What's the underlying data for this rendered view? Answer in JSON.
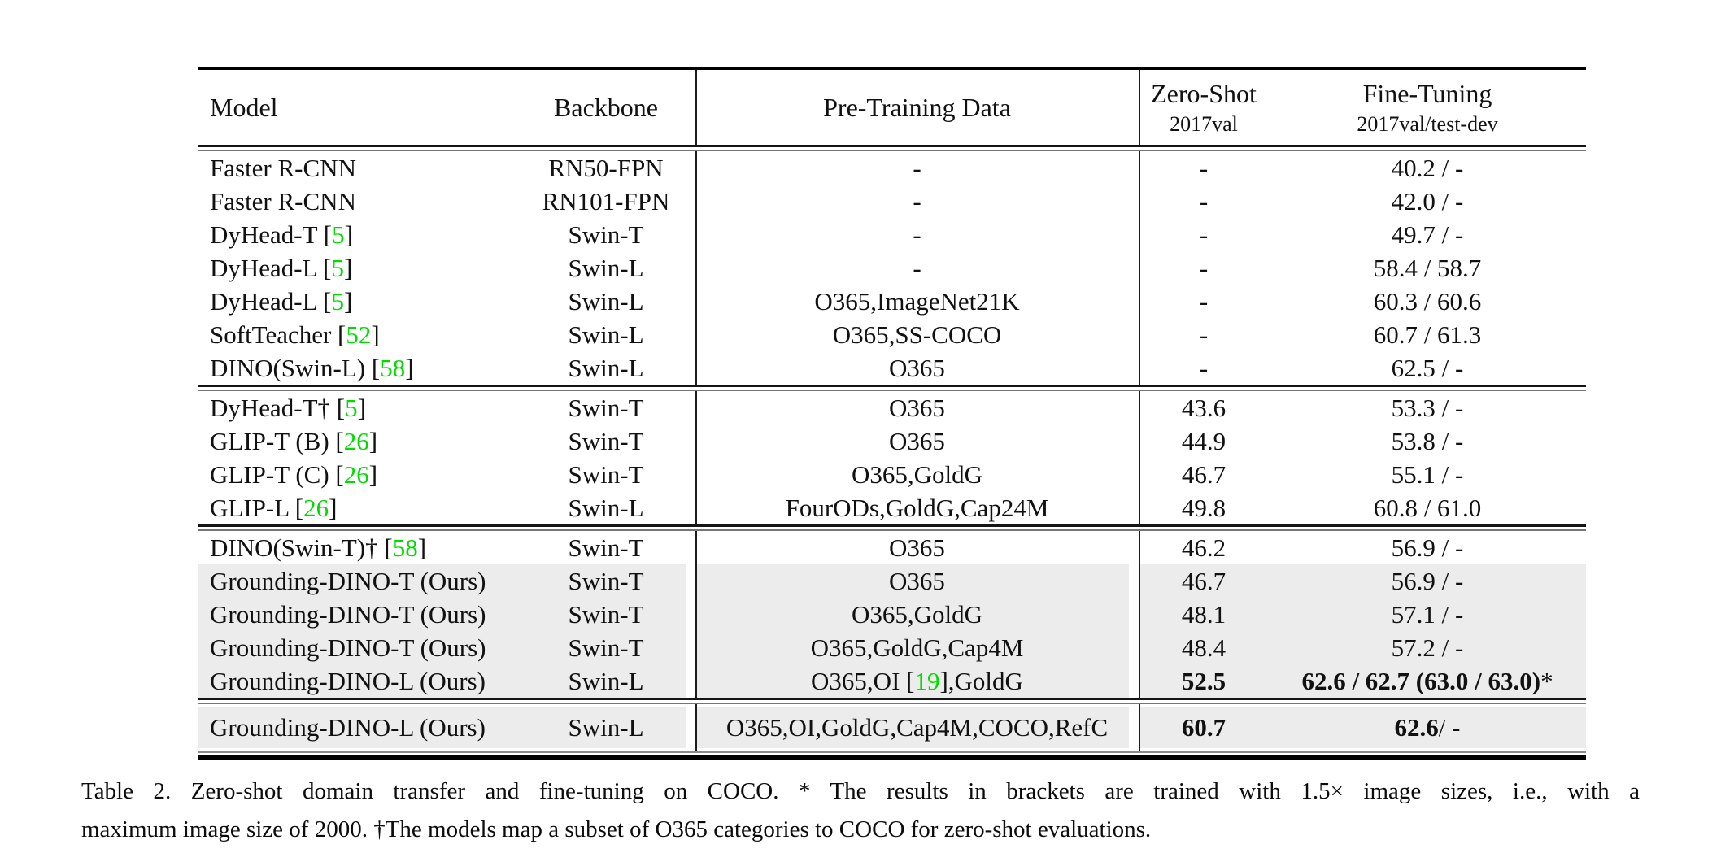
{
  "colors": {
    "citation_green": "#00DC00",
    "row_highlight": "#ECECEC",
    "rule_black": "#000000"
  },
  "header": {
    "model": "Model",
    "backbone": "Backbone",
    "pretrain": "Pre-Training Data",
    "zero_shot": "Zero-Shot",
    "zero_shot_sub": "2017val",
    "fine_tuning": "Fine-Tuning",
    "fine_tuning_sub": "2017val/test-dev"
  },
  "sections": [
    {
      "rows": [
        {
          "gray": false,
          "model": [
            {
              "t": "Faster R-CNN"
            }
          ],
          "backbone": "RN50-FPN",
          "pretrain": [
            {
              "t": "-"
            }
          ],
          "zs": [
            {
              "t": "-"
            }
          ],
          "ft": [
            {
              "t": "40.2 / -"
            }
          ]
        },
        {
          "gray": false,
          "model": [
            {
              "t": "Faster R-CNN"
            }
          ],
          "backbone": "RN101-FPN",
          "pretrain": [
            {
              "t": "-"
            }
          ],
          "zs": [
            {
              "t": "-"
            }
          ],
          "ft": [
            {
              "t": "42.0 / -"
            }
          ]
        },
        {
          "gray": false,
          "model": [
            {
              "t": "DyHead-T ["
            },
            {
              "t": "5",
              "green": true
            },
            {
              "t": "]"
            }
          ],
          "backbone": "Swin-T",
          "pretrain": [
            {
              "t": "-"
            }
          ],
          "zs": [
            {
              "t": "-"
            }
          ],
          "ft": [
            {
              "t": "49.7 / -"
            }
          ]
        },
        {
          "gray": false,
          "model": [
            {
              "t": "DyHead-L ["
            },
            {
              "t": "5",
              "green": true
            },
            {
              "t": "]"
            }
          ],
          "backbone": "Swin-L",
          "pretrain": [
            {
              "t": "-"
            }
          ],
          "zs": [
            {
              "t": "-"
            }
          ],
          "ft": [
            {
              "t": "58.4 / 58.7"
            }
          ]
        },
        {
          "gray": false,
          "model": [
            {
              "t": "DyHead-L ["
            },
            {
              "t": "5",
              "green": true
            },
            {
              "t": "]"
            }
          ],
          "backbone": "Swin-L",
          "pretrain": [
            {
              "t": "O365,ImageNet21K"
            }
          ],
          "zs": [
            {
              "t": "-"
            }
          ],
          "ft": [
            {
              "t": "60.3 / 60.6"
            }
          ]
        },
        {
          "gray": false,
          "model": [
            {
              "t": "SoftTeacher ["
            },
            {
              "t": "52",
              "green": true
            },
            {
              "t": "]"
            }
          ],
          "backbone": "Swin-L",
          "pretrain": [
            {
              "t": "O365,SS-COCO"
            }
          ],
          "zs": [
            {
              "t": "-"
            }
          ],
          "ft": [
            {
              "t": "60.7 / 61.3"
            }
          ]
        },
        {
          "gray": false,
          "model": [
            {
              "t": "DINO(Swin-L) ["
            },
            {
              "t": "58",
              "green": true
            },
            {
              "t": "]"
            }
          ],
          "backbone": "Swin-L",
          "pretrain": [
            {
              "t": "O365"
            }
          ],
          "zs": [
            {
              "t": "-"
            }
          ],
          "ft": [
            {
              "t": "62.5 / -"
            }
          ]
        }
      ]
    },
    {
      "rows": [
        {
          "gray": false,
          "model": [
            {
              "t": "DyHead-T† ["
            },
            {
              "t": "5",
              "green": true
            },
            {
              "t": "]"
            }
          ],
          "backbone": "Swin-T",
          "pretrain": [
            {
              "t": "O365"
            }
          ],
          "zs": [
            {
              "t": "43.6"
            }
          ],
          "ft": [
            {
              "t": "53.3 / -"
            }
          ]
        },
        {
          "gray": false,
          "model": [
            {
              "t": "GLIP-T (B) ["
            },
            {
              "t": "26",
              "green": true
            },
            {
              "t": "]"
            }
          ],
          "backbone": "Swin-T",
          "pretrain": [
            {
              "t": "O365"
            }
          ],
          "zs": [
            {
              "t": "44.9"
            }
          ],
          "ft": [
            {
              "t": "53.8 / -"
            }
          ]
        },
        {
          "gray": false,
          "model": [
            {
              "t": "GLIP-T (C) ["
            },
            {
              "t": "26",
              "green": true
            },
            {
              "t": "]"
            }
          ],
          "backbone": "Swin-T",
          "pretrain": [
            {
              "t": "O365,GoldG"
            }
          ],
          "zs": [
            {
              "t": "46.7"
            }
          ],
          "ft": [
            {
              "t": "55.1 / -"
            }
          ]
        },
        {
          "gray": false,
          "model": [
            {
              "t": "GLIP-L ["
            },
            {
              "t": "26",
              "green": true
            },
            {
              "t": "]"
            }
          ],
          "backbone": "Swin-L",
          "pretrain": [
            {
              "t": "FourODs,GoldG,Cap24M"
            }
          ],
          "zs": [
            {
              "t": "49.8"
            }
          ],
          "ft": [
            {
              "t": "60.8 / 61.0"
            }
          ]
        }
      ]
    },
    {
      "rows": [
        {
          "gray": false,
          "model": [
            {
              "t": "DINO(Swin-T)† ["
            },
            {
              "t": "58",
              "green": true
            },
            {
              "t": "]"
            }
          ],
          "backbone": "Swin-T",
          "pretrain": [
            {
              "t": "O365"
            }
          ],
          "zs": [
            {
              "t": "46.2"
            }
          ],
          "ft": [
            {
              "t": "56.9 / -"
            }
          ]
        },
        {
          "gray": true,
          "model": [
            {
              "t": "Grounding-DINO-T (Ours)"
            }
          ],
          "backbone": "Swin-T",
          "pretrain": [
            {
              "t": "O365"
            }
          ],
          "zs": [
            {
              "t": "46.7"
            }
          ],
          "ft": [
            {
              "t": "56.9 / -"
            }
          ]
        },
        {
          "gray": true,
          "model": [
            {
              "t": "Grounding-DINO-T (Ours)"
            }
          ],
          "backbone": "Swin-T",
          "pretrain": [
            {
              "t": "O365,GoldG"
            }
          ],
          "zs": [
            {
              "t": "48.1"
            }
          ],
          "ft": [
            {
              "t": "57.1 / -"
            }
          ]
        },
        {
          "gray": true,
          "model": [
            {
              "t": "Grounding-DINO-T (Ours)"
            }
          ],
          "backbone": "Swin-T",
          "pretrain": [
            {
              "t": "O365,GoldG,Cap4M"
            }
          ],
          "zs": [
            {
              "t": "48.4"
            }
          ],
          "ft": [
            {
              "t": "57.2 / -"
            }
          ]
        },
        {
          "gray": true,
          "model": [
            {
              "t": "Grounding-DINO-L (Ours)"
            }
          ],
          "backbone": "Swin-L",
          "pretrain": [
            {
              "t": "O365,OI ["
            },
            {
              "t": "19",
              "green": true
            },
            {
              "t": "],GoldG"
            }
          ],
          "zs": [
            {
              "t": "52.5",
              "bold": true
            }
          ],
          "ft": [
            {
              "t": "62.6 / 62.7 (63.0 / 63.0)",
              "bold": true
            },
            {
              "t": "*"
            }
          ]
        }
      ]
    },
    {
      "padded": true,
      "rows": [
        {
          "gray": true,
          "model": [
            {
              "t": "Grounding-DINO-L (Ours)"
            }
          ],
          "backbone": "Swin-L",
          "pretrain": [
            {
              "t": "O365,OI,GoldG,Cap4M,COCO,RefC"
            }
          ],
          "zs": [
            {
              "t": "60.7",
              "bold": true
            }
          ],
          "ft": [
            {
              "t": "62.6",
              "bold": true
            },
            {
              "t": " / -"
            }
          ]
        }
      ]
    }
  ],
  "caption": {
    "line1": "Table 2. Zero-shot domain transfer and fine-tuning on COCO. * The results in brackets are trained with 1.5× image sizes, i.e., with a",
    "line2": "maximum image size of 2000. †The models map a subset of O365 categories to COCO for zero-shot evaluations."
  }
}
